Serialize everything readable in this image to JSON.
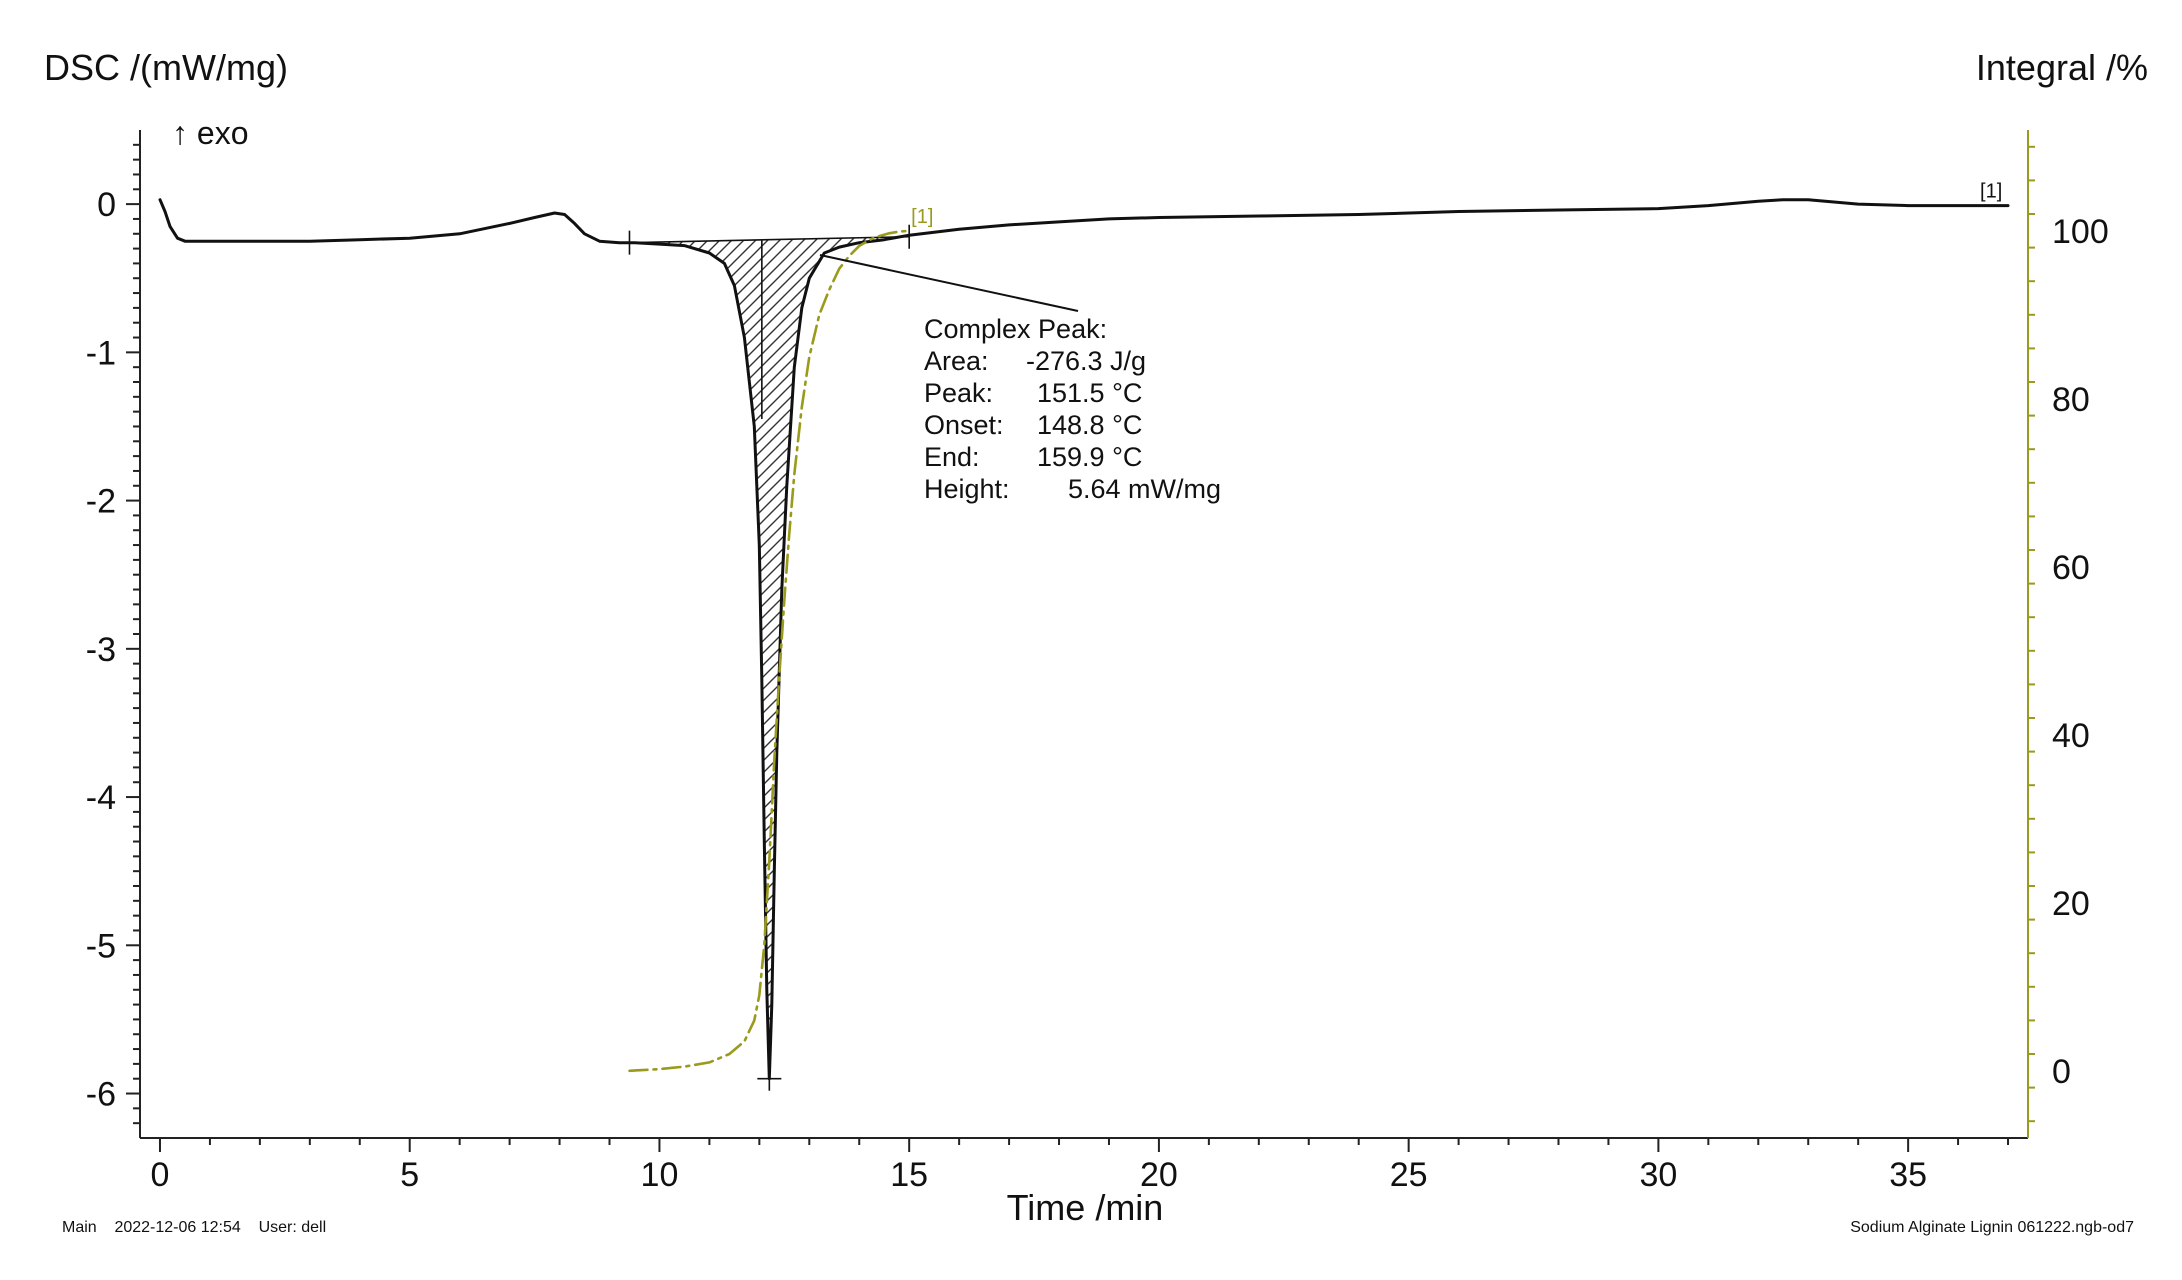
{
  "chart_data": {
    "type": "line",
    "xlabel": "Time /min",
    "ylabel_left": "DSC /(mW/mg)",
    "ylabel_right": "Integral /%",
    "exo_label": "↑ exo",
    "xlim": [
      -0.4,
      37.4
    ],
    "ylim_left": [
      -6.3,
      0.5
    ],
    "ylim_right": [
      -8,
      112
    ],
    "x_ticks": [
      0,
      5,
      10,
      15,
      20,
      25,
      30,
      35
    ],
    "x_tick_labels": [
      "0",
      "5",
      "10",
      "15",
      "20",
      "25",
      "30",
      "35"
    ],
    "y_left_ticks": [
      0,
      -1,
      -2,
      -3,
      -4,
      -5,
      -6
    ],
    "y_left_tick_labels": [
      "0",
      "-1",
      "-2",
      "-3",
      "-4",
      "-5",
      "-6"
    ],
    "y_right_ticks": [
      100,
      80,
      60,
      40,
      20,
      0
    ],
    "y_right_tick_labels": [
      "100",
      "80",
      "60",
      "40",
      "20",
      "0"
    ],
    "colors": {
      "dsc": "#111111",
      "integral": "#9a9a1c",
      "right_axis": "#9a9a1c"
    },
    "series": [
      {
        "axis": "left",
        "x": [
          0.0,
          0.1,
          0.2,
          0.35,
          0.5,
          1,
          2,
          3,
          4,
          5,
          6,
          7,
          7.5,
          7.9,
          8.1,
          8.3,
          8.5,
          8.8,
          9.2,
          9.5,
          10,
          10.5,
          11,
          11.3,
          11.5,
          11.7,
          11.9,
          12.0,
          12.05,
          12.1,
          12.15,
          12.2,
          12.25,
          12.3,
          12.35,
          12.45,
          12.55,
          12.7,
          12.85,
          13.0,
          13.3,
          13.6,
          14,
          14.5,
          15,
          16,
          17,
          18,
          19,
          20,
          22,
          24,
          26,
          28,
          30,
          31,
          32,
          32.5,
          33,
          34,
          35,
          36,
          37
        ],
        "values": [
          0.03,
          -0.05,
          -0.15,
          -0.23,
          -0.25,
          -0.25,
          -0.25,
          -0.25,
          -0.24,
          -0.23,
          -0.2,
          -0.13,
          -0.09,
          -0.06,
          -0.07,
          -0.13,
          -0.2,
          -0.25,
          -0.26,
          -0.26,
          -0.27,
          -0.28,
          -0.33,
          -0.4,
          -0.55,
          -0.9,
          -1.5,
          -2.3,
          -3.2,
          -4.3,
          -5.3,
          -5.9,
          -5.4,
          -4.5,
          -3.7,
          -2.6,
          -1.9,
          -1.1,
          -0.7,
          -0.5,
          -0.33,
          -0.29,
          -0.26,
          -0.24,
          -0.21,
          -0.17,
          -0.14,
          -0.12,
          -0.1,
          -0.09,
          -0.08,
          -0.07,
          -0.05,
          -0.04,
          -0.03,
          -0.01,
          0.02,
          0.03,
          0.03,
          0.0,
          -0.01,
          -0.01,
          -0.01
        ]
      },
      {
        "axis": "right",
        "x": [
          9.4,
          10,
          10.5,
          11,
          11.4,
          11.7,
          11.9,
          12.0,
          12.1,
          12.15,
          12.2,
          12.25,
          12.3,
          12.4,
          12.5,
          12.6,
          12.7,
          12.85,
          13.0,
          13.2,
          13.4,
          13.6,
          13.8,
          14.0,
          14.3,
          14.6,
          14.8,
          15.0
        ],
        "values": [
          0,
          0.2,
          0.5,
          1,
          2,
          3.5,
          6,
          9,
          15,
          20,
          25,
          31,
          37,
          47,
          56,
          64,
          71,
          79,
          85,
          90,
          93,
          95.5,
          97,
          98.2,
          99.2,
          99.7,
          99.9,
          100
        ]
      }
    ],
    "peak_marker": {
      "x": 12.2,
      "y": -5.9
    },
    "baseline": {
      "start": [
        9.4,
        -0.26
      ],
      "end": [
        15.0,
        -0.22
      ],
      "split_x": 12.05
    },
    "annotation": {
      "title": "Complex Peak:",
      "rows": [
        {
          "label": "Area:",
          "value": "-276.3 J/g"
        },
        {
          "label": "Peak:",
          "value": "151.5 °C"
        },
        {
          "label": "Onset:",
          "value": "148.8 °C"
        },
        {
          "label": "End:",
          "value": "159.9 °C"
        },
        {
          "label": "Height:",
          "value": "5.64 mW/mg"
        }
      ]
    },
    "curve_markers": {
      "dsc_end": "[1]",
      "integral_end": "[1]"
    }
  },
  "footer": {
    "left": "Main    2022-12-06 12:54    User: dell",
    "right": "Sodium Alginate Lignin 061222.ngb-od7"
  }
}
